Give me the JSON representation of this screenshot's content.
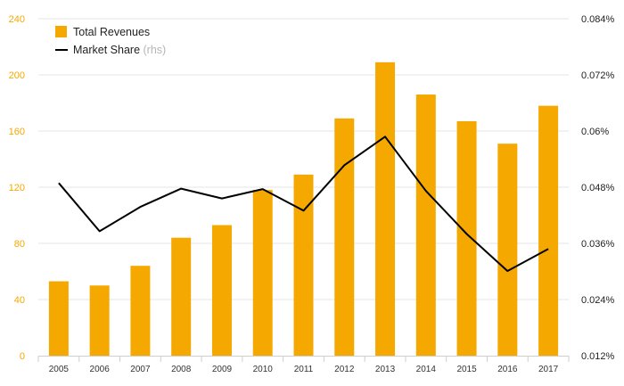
{
  "chart_data": {
    "type": "bar",
    "categories": [
      "2005",
      "2006",
      "2007",
      "2008",
      "2009",
      "2010",
      "2011",
      "2012",
      "2013",
      "2014",
      "2015",
      "2016",
      "2017"
    ],
    "series": [
      {
        "name": "Total Revenues",
        "type": "bar",
        "axis": "left",
        "color": "#f5a800",
        "values": [
          53,
          50,
          64,
          84,
          93,
          118,
          129,
          169,
          209,
          186,
          167,
          151,
          178
        ]
      },
      {
        "name": "Market Share",
        "name_note": "(rhs)",
        "type": "line",
        "axis": "right",
        "color": "#000000",
        "values": [
          0.0489,
          0.0386,
          0.0438,
          0.0477,
          0.0456,
          0.0476,
          0.043,
          0.0527,
          0.0588,
          0.0472,
          0.038,
          0.0301,
          0.0348
        ]
      }
    ],
    "y_left": {
      "ylim": [
        0,
        240
      ],
      "ticks": [
        "0",
        "40",
        "80",
        "120",
        "160",
        "200",
        "240"
      ]
    },
    "y_right": {
      "ylim": [
        0.012,
        0.084
      ],
      "ticks": [
        "0.012%",
        "0.024%",
        "0.036%",
        "0.048%",
        "0.06%",
        "0.072%",
        "0.084%"
      ]
    },
    "grid": true,
    "legend_position": "top-left"
  }
}
